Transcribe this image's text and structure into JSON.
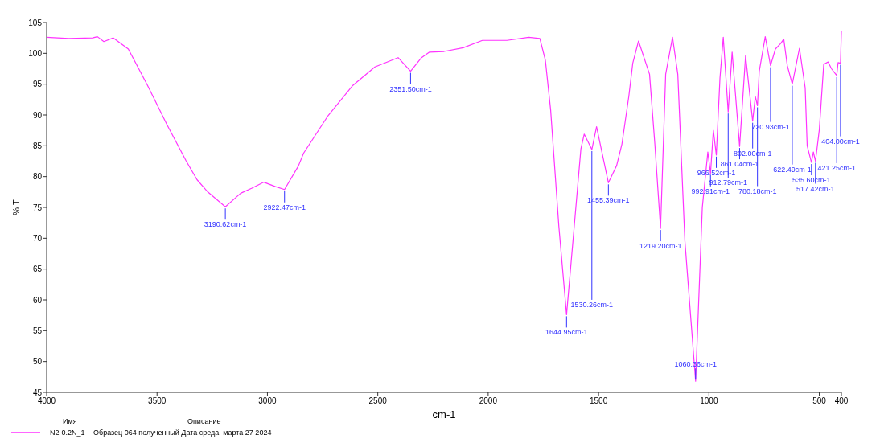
{
  "chart_data": {
    "type": "line",
    "xlabel": "cm-1",
    "ylabel": "% T",
    "xlim": [
      4000,
      400
    ],
    "xticks": [
      4000,
      3500,
      3000,
      2500,
      2000,
      1500,
      1000,
      500,
      400
    ],
    "ylim": [
      45,
      105
    ],
    "yticks": [
      45,
      50,
      55,
      60,
      65,
      70,
      75,
      80,
      85,
      90,
      95,
      100,
      105
    ],
    "grid": false,
    "legend": "bottom left",
    "series": [
      {
        "name": "N2-0.2N_1",
        "color": "#ff33ff",
        "x": [
          4000,
          3900,
          3792,
          3770,
          3741,
          3698,
          3630,
          3543,
          3456,
          3369,
          3319,
          3270,
          3190.62,
          3121,
          3072,
          3016,
          2966,
          2922.47,
          2860,
          2836,
          2725,
          2613,
          2513,
          2408,
          2351.5,
          2302,
          2266,
          2200,
          2113,
          2026,
          1915,
          1816,
          1766,
          1741,
          1717,
          1680,
          1644.95,
          1610,
          1580,
          1565,
          1530.26,
          1509,
          1455.39,
          1418,
          1394,
          1363,
          1345,
          1319,
          1269,
          1245,
          1219.2,
          1196,
          1165,
          1141,
          1109,
          1060.36,
          1030,
          1005,
          992.91,
          980,
          966.52,
          950,
          935,
          912.79,
          895,
          861.04,
          834,
          802,
          790,
          780.18,
          772,
          745,
          720.93,
          699,
          675,
          661,
          645,
          622.49,
          590,
          564,
          555,
          535.6,
          527,
          517.42,
          500,
          480,
          460,
          445,
          421.25,
          415,
          404,
          400
        ],
        "values": [
          102.6,
          102.4,
          102.5,
          102.7,
          101.9,
          102.5,
          100.7,
          94.8,
          88.5,
          82.6,
          79.5,
          77.5,
          75.1,
          77.3,
          78.1,
          79.1,
          78.4,
          77.9,
          81.7,
          83.8,
          89.9,
          94.8,
          97.8,
          99.3,
          97.1,
          99.3,
          100.2,
          100.3,
          100.9,
          102.1,
          102.1,
          102.6,
          102.4,
          98.9,
          90.8,
          72,
          57.6,
          72,
          84.5,
          86.9,
          84.4,
          88.1,
          79,
          81.8,
          85.3,
          93,
          98.4,
          102,
          96.6,
          85.3,
          71.6,
          96.6,
          102.6,
          96.6,
          69.6,
          46.8,
          75,
          84,
          80.5,
          87.5,
          83.5,
          96,
          102.6,
          90.5,
          100.2,
          84.9,
          99.6,
          89,
          93,
          91.5,
          97.1,
          102.7,
          98,
          100.7,
          101.6,
          102.3,
          98,
          95,
          100.8,
          94.4,
          85,
          82.3,
          84,
          82.5,
          87.6,
          98.2,
          98.6,
          97.5,
          96.4,
          98.5,
          98.4,
          103.6
        ]
      }
    ],
    "annotations": [
      {
        "text": "3190.62cm-1",
        "x": 3190.62,
        "y": 75.1
      },
      {
        "text": "2922.47cm-1",
        "x": 2922.47,
        "y": 77.9
      },
      {
        "text": "2351.50cm-1",
        "x": 2351.5,
        "y": 97.1
      },
      {
        "text": "1644.95cm-1",
        "x": 1644.95,
        "y": 57.6
      },
      {
        "text": "1530.26cm-1",
        "x": 1530.26,
        "y": 84.4
      },
      {
        "text": "1455.39cm-1",
        "x": 1455.39,
        "y": 79
      },
      {
        "text": "1219.20cm-1",
        "x": 1219.2,
        "y": 71.6
      },
      {
        "text": "1060.36cm-1",
        "x": 1060.36,
        "y": 46.8
      },
      {
        "text": "992.91cm-1",
        "x": 992.91,
        "y": 80.5
      },
      {
        "text": "966.52cm-1",
        "x": 966.52,
        "y": 83.5
      },
      {
        "text": "912.79cm-1",
        "x": 912.79,
        "y": 90.5
      },
      {
        "text": "861.04cm-1",
        "x": 861.04,
        "y": 84.9
      },
      {
        "text": "802.00cm-1",
        "x": 802,
        "y": 89
      },
      {
        "text": "780.18cm-1",
        "x": 780.18,
        "y": 91.5
      },
      {
        "text": "720.93cm-1",
        "x": 720.93,
        "y": 98
      },
      {
        "text": "622.49cm-1",
        "x": 622.49,
        "y": 95
      },
      {
        "text": "535.60cm-1",
        "x": 535.6,
        "y": 82.3
      },
      {
        "text": "517.42cm-1",
        "x": 517.42,
        "y": 82.5
      },
      {
        "text": "421.25cm-1",
        "x": 421.25,
        "y": 96.4
      },
      {
        "text": "404.00cm-1",
        "x": 404,
        "y": 98.4
      },
      "Имя",
      "Описание",
      "Образец 064 полученный Дата среда, марта 27 2024"
    ]
  }
}
